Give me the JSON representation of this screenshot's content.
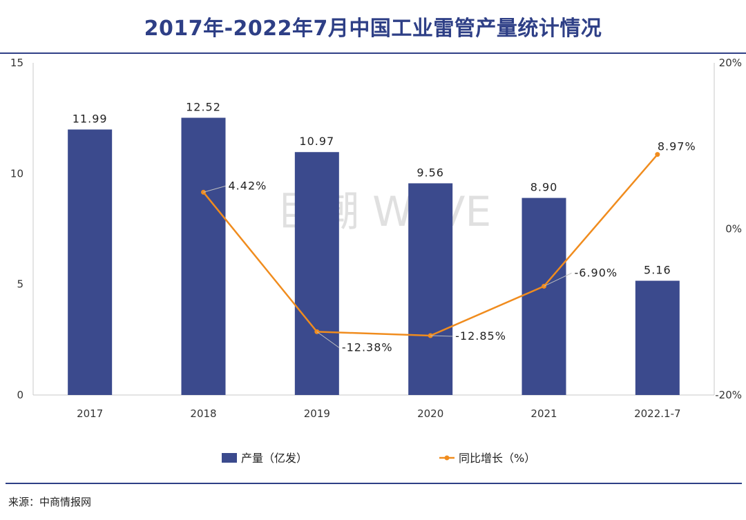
{
  "title": "2017年-2022年7月中国工业雷管产量统计情况",
  "source": "来源：中商情报网",
  "watermark": "巨潮 WAVE",
  "colors": {
    "bar": "#3b4a8d",
    "line": "#f08c1e",
    "title": "#2e3f86",
    "axis": "#c8c8c8"
  },
  "chart_data": {
    "type": "bar",
    "categories": [
      "2017",
      "2018",
      "2019",
      "2020",
      "2021",
      "2022.1-7"
    ],
    "y_left": {
      "min": 0,
      "max": 15,
      "ticks": [
        "0",
        "5",
        "10",
        "15"
      ]
    },
    "y_right": {
      "min": -20,
      "max": 20,
      "ticks": [
        "-20%",
        "0%",
        "20%"
      ]
    },
    "series": [
      {
        "name": "产量（亿发）",
        "type": "bar",
        "axis": "left",
        "values": [
          11.99,
          12.52,
          10.97,
          9.56,
          8.9,
          5.16
        ],
        "labels": [
          "11.99",
          "12.52",
          "10.97",
          "9.56",
          "8.90",
          "5.16"
        ]
      },
      {
        "name": "同比增长（%）",
        "type": "line",
        "axis": "right",
        "values": [
          null,
          4.42,
          -12.38,
          -12.85,
          -6.9,
          8.97
        ],
        "labels": [
          "",
          "4.42%",
          "-12.38%",
          "-12.85%",
          "-6.90%",
          "8.97%"
        ]
      }
    ],
    "legend_position": "bottom"
  }
}
